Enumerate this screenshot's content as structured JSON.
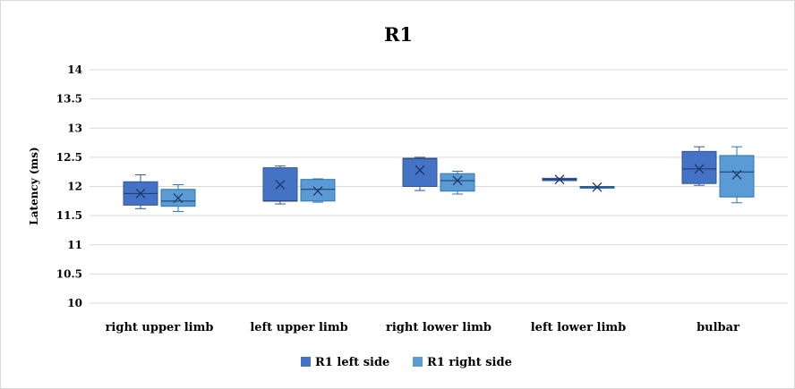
{
  "chart_data": {
    "type": "boxplot",
    "title": "R1",
    "xlabel": "",
    "ylabel": "Latency (ms)",
    "ylim": [
      10,
      14
    ],
    "yticks": [
      "10",
      "10.5",
      "11",
      "11.5",
      "12",
      "12.5",
      "13",
      "13.5",
      "14"
    ],
    "grid": true,
    "legend_position": "bottom",
    "categories": [
      "right upper limb",
      "left upper limb",
      "right lower limb",
      "left lower limb",
      "bulbar"
    ],
    "series": [
      {
        "name": "R1 left side",
        "color": "#4472c4",
        "boxes": [
          {
            "min": 11.62,
            "q1": 11.68,
            "median": 11.88,
            "q3": 12.08,
            "max": 12.2,
            "mean": 11.88
          },
          {
            "min": 11.7,
            "q1": 11.75,
            "median": 11.75,
            "q3": 12.32,
            "max": 12.35,
            "mean": 12.03
          },
          {
            "min": 11.93,
            "q1": 12.0,
            "median": 12.48,
            "q3": 12.48,
            "max": 12.5,
            "mean": 12.28
          },
          {
            "min": 12.1,
            "q1": 12.1,
            "median": 12.12,
            "q3": 12.14,
            "max": 12.14,
            "mean": 12.12
          },
          {
            "min": 12.02,
            "q1": 12.05,
            "median": 12.3,
            "q3": 12.6,
            "max": 12.68,
            "mean": 12.3
          }
        ]
      },
      {
        "name": "R1 right side",
        "color": "#5b9bd5",
        "boxes": [
          {
            "min": 11.57,
            "q1": 11.66,
            "median": 11.75,
            "q3": 11.95,
            "max": 12.03,
            "mean": 11.8
          },
          {
            "min": 11.73,
            "q1": 11.75,
            "median": 11.95,
            "q3": 12.12,
            "max": 12.13,
            "mean": 11.92
          },
          {
            "min": 11.87,
            "q1": 11.92,
            "median": 12.1,
            "q3": 12.22,
            "max": 12.26,
            "mean": 12.1
          },
          {
            "min": 11.98,
            "q1": 11.98,
            "median": 11.99,
            "q3": 12.0,
            "max": 12.0,
            "mean": 11.99
          },
          {
            "min": 11.72,
            "q1": 11.82,
            "median": 12.25,
            "q3": 12.53,
            "max": 12.68,
            "mean": 12.2
          }
        ]
      }
    ]
  }
}
